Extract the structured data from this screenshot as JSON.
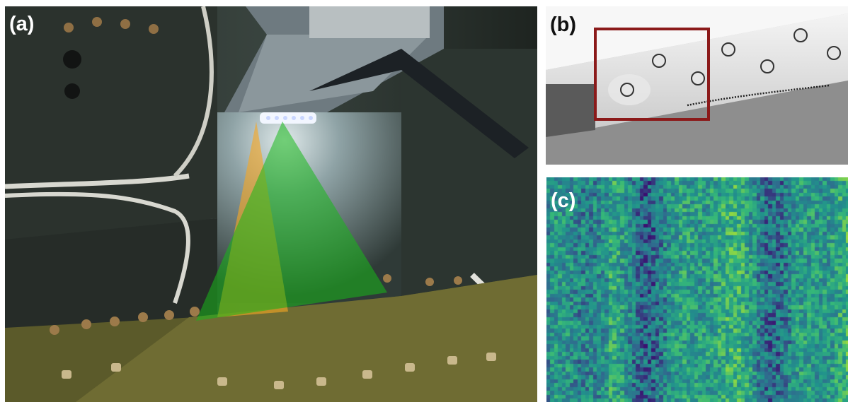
{
  "panels": {
    "a": {
      "label": "(a)"
    },
    "b": {
      "label": "(b)"
    },
    "c": {
      "label": "(c)"
    }
  },
  "colors": {
    "sensor_fov_orange": "#f5a623",
    "sensor_fov_green": "#17b81a",
    "region_box": "#8b1a1a",
    "heatmap_low": "#3b0f70",
    "heatmap_mid": "#21918c",
    "heatmap_high": "#fde725"
  }
}
